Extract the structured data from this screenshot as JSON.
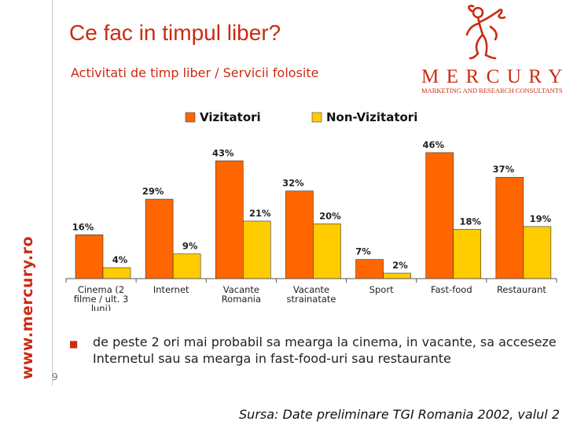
{
  "sidebar_url": "www.mercury.ro",
  "title": "Ce fac in timpul liber?",
  "subtitle": "Activitati de timp liber / Servicii folosite",
  "brand": {
    "name": "MERCURY",
    "tagline": "MARKETING AND RESEARCH CONSULTANTS"
  },
  "colors": {
    "accent": "#cc2a12",
    "series_vizitatori": "#ff6600",
    "series_non_vizitatori": "#ffcc00"
  },
  "chart_data": {
    "type": "bar",
    "title": "",
    "xlabel": "",
    "ylabel": "",
    "ylim": [
      0,
      50
    ],
    "legend": "top",
    "grid": false,
    "categories": [
      [
        "Cinema (2",
        "filme / ult. 3",
        "luni)"
      ],
      [
        "Internet"
      ],
      [
        "Vacante",
        "Romania"
      ],
      [
        "Vacante",
        "strainatate"
      ],
      [
        "Sport"
      ],
      [
        "Fast-food"
      ],
      [
        "Restaurant"
      ]
    ],
    "series": [
      {
        "name": "Vizitatori",
        "values": [
          16,
          29,
          43,
          32,
          7,
          46,
          37
        ],
        "labels": [
          "16%",
          "29%",
          "43%",
          "32%",
          "7%",
          "46%",
          "37%"
        ]
      },
      {
        "name": "Non-Vizitatori",
        "values": [
          4,
          9,
          21,
          20,
          2,
          18,
          19
        ],
        "labels": [
          "4%",
          "9%",
          "21%",
          "20%",
          "2%",
          "18%",
          "19%"
        ]
      }
    ]
  },
  "bullet": "de peste 2 ori mai probabil sa mearga la cinema, in vacante, sa acceseze Internetul sau sa mearga in fast-food-uri sau restaurante",
  "page_number": "9",
  "source": "Sursa: Date preliminare TGI Romania 2002, valul 2"
}
